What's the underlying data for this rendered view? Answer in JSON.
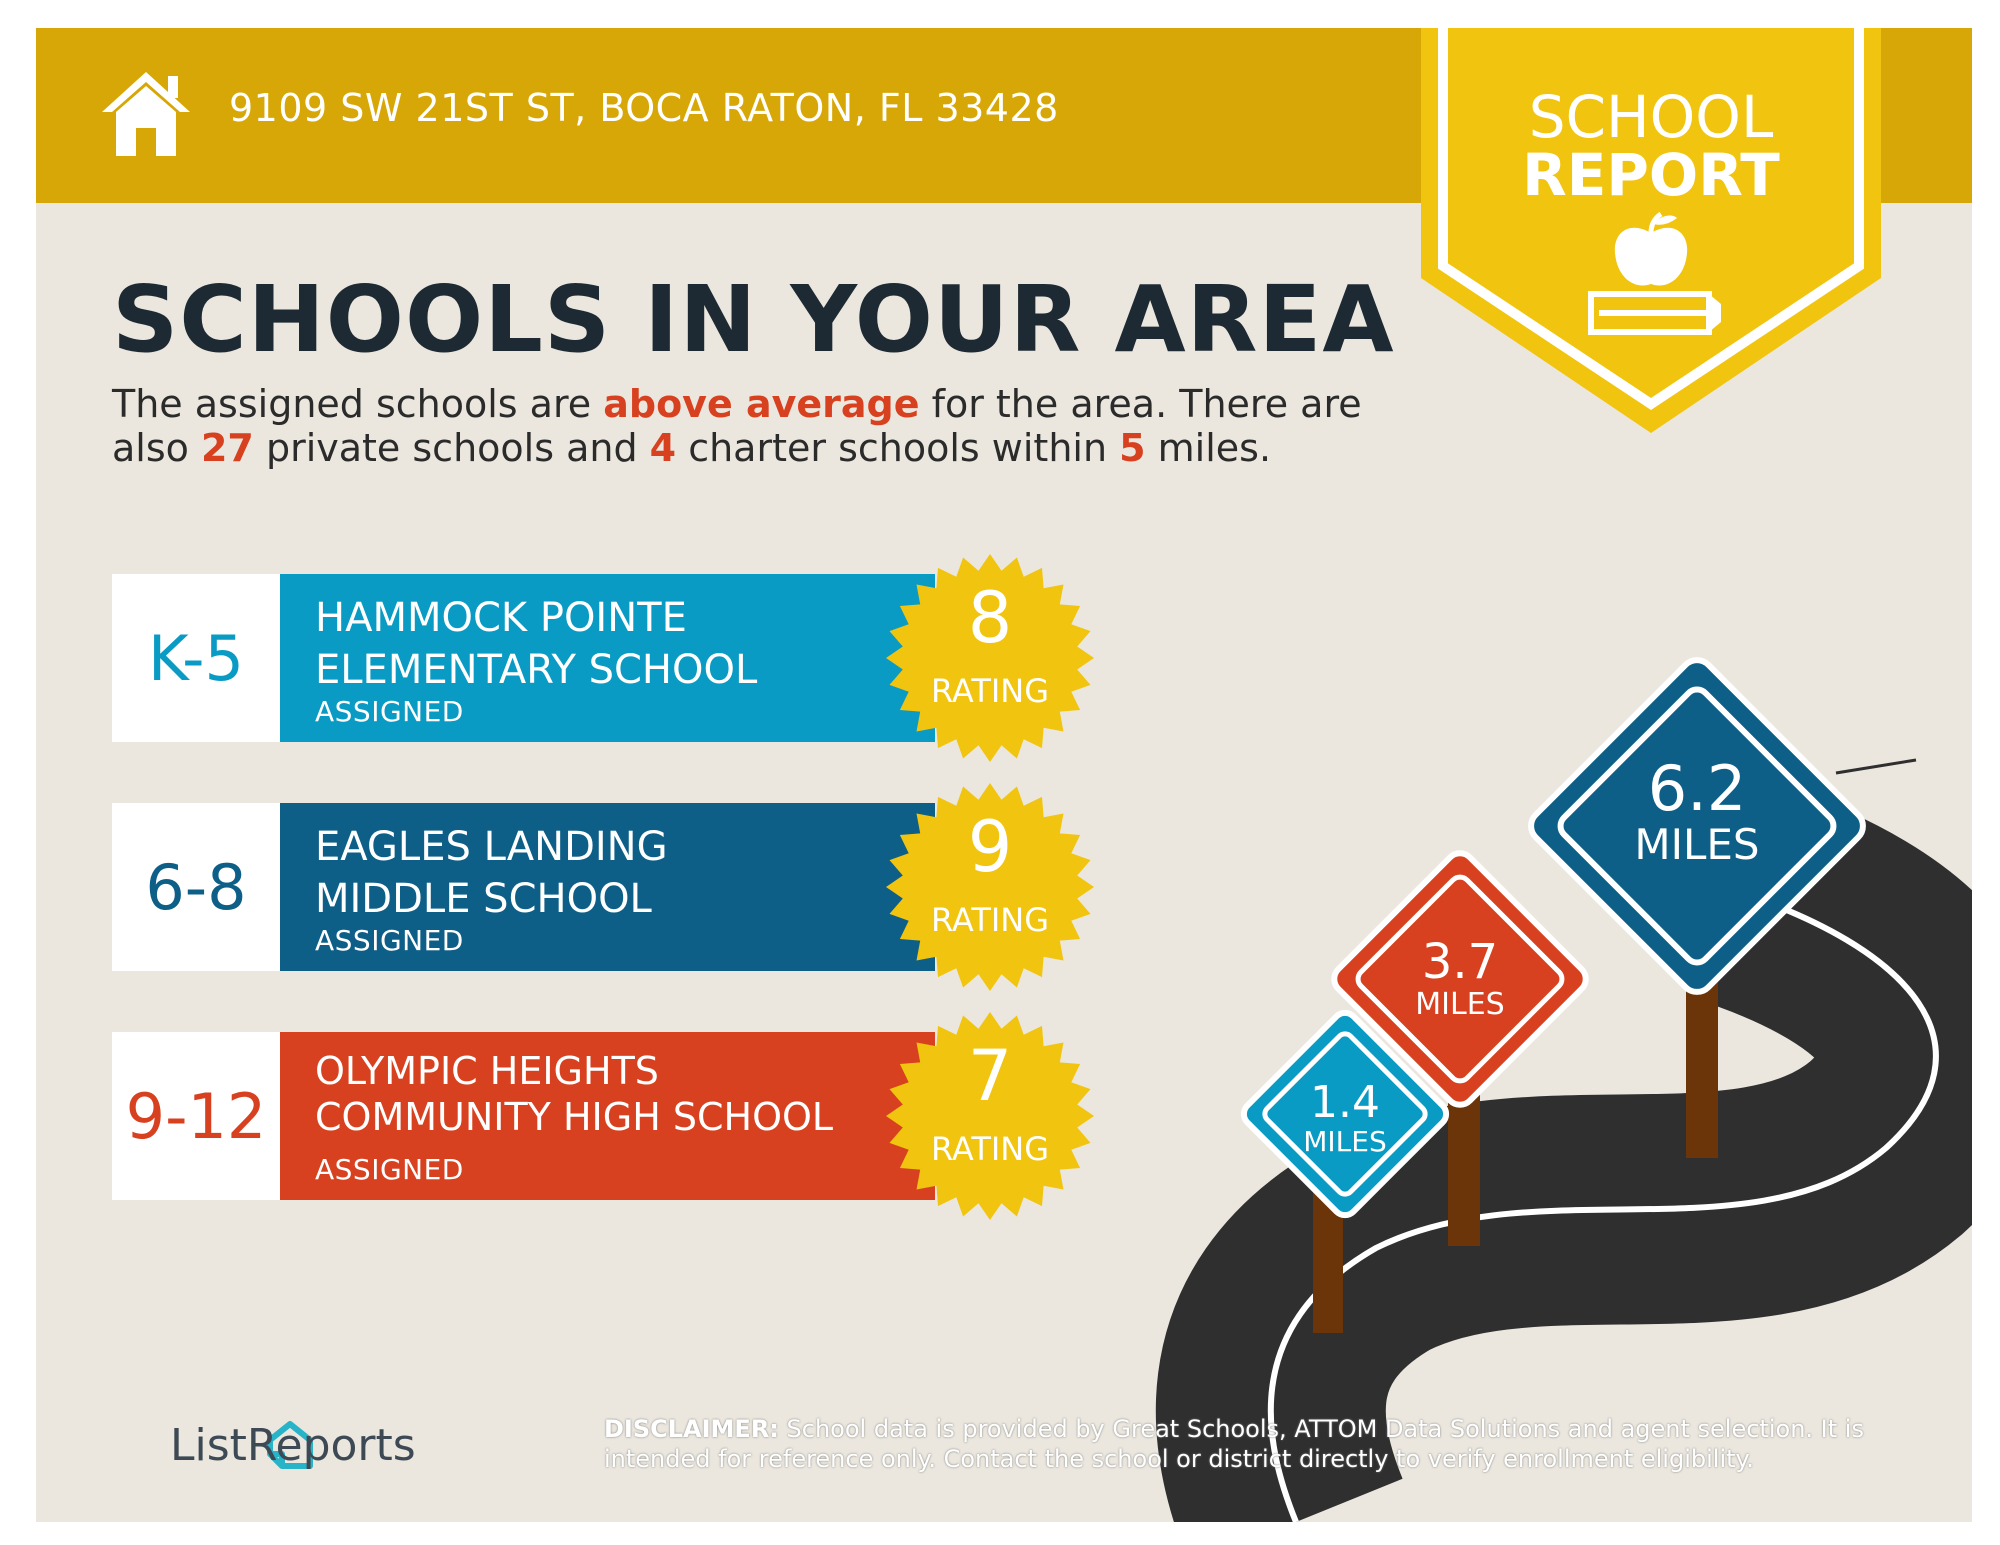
{
  "header": {
    "address": "9109 SW 21ST ST, BOCA RATON, FL 33428",
    "badge_line1": "SCHOOL",
    "badge_line2": "REPORT"
  },
  "title": "SCHOOLS IN YOUR AREA",
  "summary": {
    "p1": "The assigned schools are ",
    "h1": "above average",
    "p2": " for the area. There are also ",
    "h2": "27",
    "p3": " private schools and ",
    "h3": "4",
    "p4": " charter schools within ",
    "h4": "5",
    "p5": " miles."
  },
  "schools": [
    {
      "grade": "K-5",
      "name_line1": "HAMMOCK POINTE",
      "name_line2": "ELEMENTARY SCHOOL",
      "status": "ASSIGNED",
      "rating": "8",
      "rating_label": "RATING",
      "color": "#0a9bc4"
    },
    {
      "grade": "6-8",
      "name_line1": "EAGLES LANDING",
      "name_line2": "MIDDLE SCHOOL",
      "status": "ASSIGNED",
      "rating": "9",
      "rating_label": "RATING",
      "color": "#0e5f87"
    },
    {
      "grade": "9-12",
      "name_line1": "OLYMPIC HEIGHTS",
      "name_line2": "COMMUNITY HIGH SCHOOL",
      "status": "ASSIGNED",
      "rating": "7",
      "rating_label": "RATING",
      "color": "#d7411f"
    }
  ],
  "signs": [
    {
      "value": "1.4",
      "unit": "MILES",
      "color": "#0a9bc4"
    },
    {
      "value": "3.7",
      "unit": "MILES",
      "color": "#d7411f"
    },
    {
      "value": "6.2",
      "unit": "MILES",
      "color": "#0e5f87"
    }
  ],
  "logo": "ListReports",
  "disclaimer": {
    "label": "DISCLAIMER:",
    "text": " School data is provided by Great Schools, ATTOM Data Solutions and agent selection. It is intended for reference only. Contact the school or district directly to verify enrollment eligibility."
  },
  "colors": {
    "gold": "#d7a707",
    "yellow": "#f1c40f",
    "accent_red": "#d7411f",
    "background": "#ebe7de"
  }
}
